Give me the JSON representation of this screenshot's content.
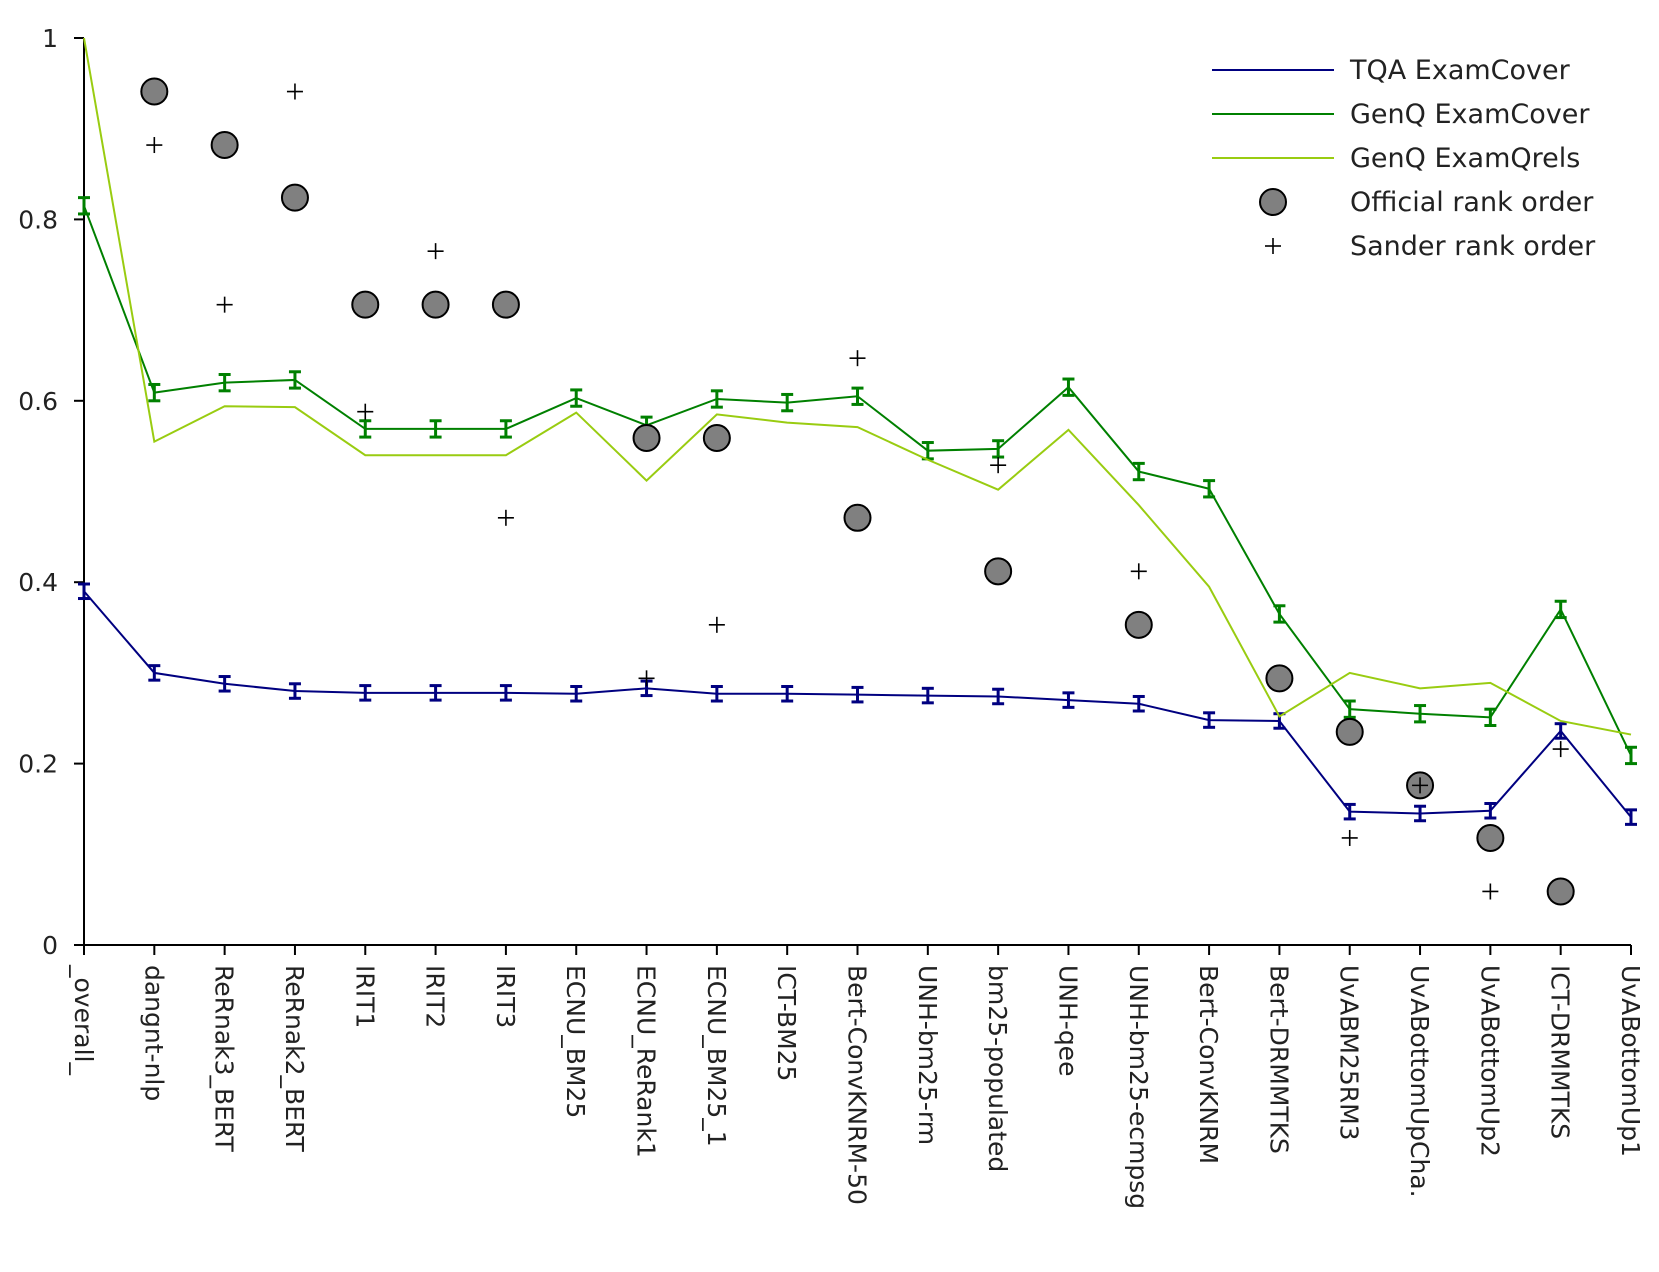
{
  "chart_data": {
    "type": "line",
    "title": "",
    "xlabel": "",
    "ylabel": "",
    "ylim": [
      0,
      1
    ],
    "y_ticks": [
      "0",
      "0.2",
      "0.4",
      "0.6",
      "0.8",
      "1"
    ],
    "categories": [
      "_overall_",
      "dangnt-nlp",
      "ReRnak3_BERT",
      "ReRnak2_BERT",
      "IRIT1",
      "IRIT2",
      "IRIT3",
      "ECNU_BM25",
      "ECNU_ReRank1",
      "ECNU_BM25_1",
      "ICT-BM25",
      "Bert-ConvKNRM-50",
      "UNH-bm25-rm",
      "bm25-populated",
      "UNH-qee",
      "UNH-bm25-ecmpsg",
      "Bert-ConvKNRM",
      "Bert-DRMMTKS",
      "UvABM25RM3",
      "UvABottomUpCha.",
      "UvABottomUp2",
      "ICT-DRMMTKS",
      "UvABottomUp1"
    ],
    "series": [
      {
        "name": "TQA ExamCover",
        "color": "#000080",
        "values": [
          0.39,
          0.3,
          0.288,
          0.28,
          0.278,
          0.278,
          0.278,
          0.277,
          0.283,
          0.277,
          0.277,
          0.276,
          0.275,
          0.274,
          0.27,
          0.266,
          0.248,
          0.247,
          0.147,
          0.145,
          0.148,
          0.236,
          0.141
        ],
        "errors": [
          0.008,
          0.008,
          0.008,
          0.008,
          0.008,
          0.008,
          0.008,
          0.008,
          0.008,
          0.008,
          0.008,
          0.008,
          0.008,
          0.008,
          0.008,
          0.008,
          0.008,
          0.008,
          0.008,
          0.008,
          0.008,
          0.008,
          0.008
        ]
      },
      {
        "name": "GenQ ExamCover",
        "color": "#008000",
        "values": [
          0.815,
          0.609,
          0.62,
          0.623,
          0.569,
          0.569,
          0.569,
          0.603,
          0.573,
          0.602,
          0.598,
          0.605,
          0.545,
          0.547,
          0.615,
          0.522,
          0.503,
          0.365,
          0.26,
          0.255,
          0.251,
          0.37,
          0.209
        ],
        "errors": [
          0.009,
          0.009,
          0.009,
          0.009,
          0.009,
          0.009,
          0.009,
          0.009,
          0.009,
          0.009,
          0.009,
          0.009,
          0.009,
          0.009,
          0.009,
          0.009,
          0.009,
          0.009,
          0.009,
          0.009,
          0.009,
          0.009,
          0.009
        ]
      },
      {
        "name": "GenQ ExamQrels",
        "color": "#99cc11",
        "values": [
          1.0,
          0.555,
          0.594,
          0.593,
          0.54,
          0.54,
          0.54,
          0.587,
          0.512,
          0.585,
          0.576,
          0.571,
          0.535,
          0.502,
          0.568,
          0.485,
          0.395,
          0.252,
          0.3,
          0.283,
          0.289,
          0.247,
          0.232
        ]
      }
    ],
    "official_rank_order": [
      null,
      0.941,
      0.882,
      0.824,
      0.706,
      0.706,
      0.706,
      null,
      0.559,
      0.559,
      null,
      0.471,
      null,
      0.412,
      null,
      0.353,
      null,
      0.294,
      0.235,
      0.176,
      0.118,
      0.059,
      null
    ],
    "sander_rank_order": [
      null,
      0.882,
      0.706,
      0.941,
      0.588,
      0.765,
      0.471,
      null,
      0.294,
      0.353,
      null,
      0.647,
      null,
      0.529,
      null,
      0.412,
      null,
      null,
      0.118,
      0.176,
      0.059,
      0.216,
      null
    ],
    "legend": {
      "position": "top-right",
      "entries": [
        "TQA ExamCover",
        "GenQ ExamCover",
        "GenQ ExamQrels",
        "Official rank order",
        "Sander rank order"
      ]
    },
    "marker_color": "#808080"
  }
}
